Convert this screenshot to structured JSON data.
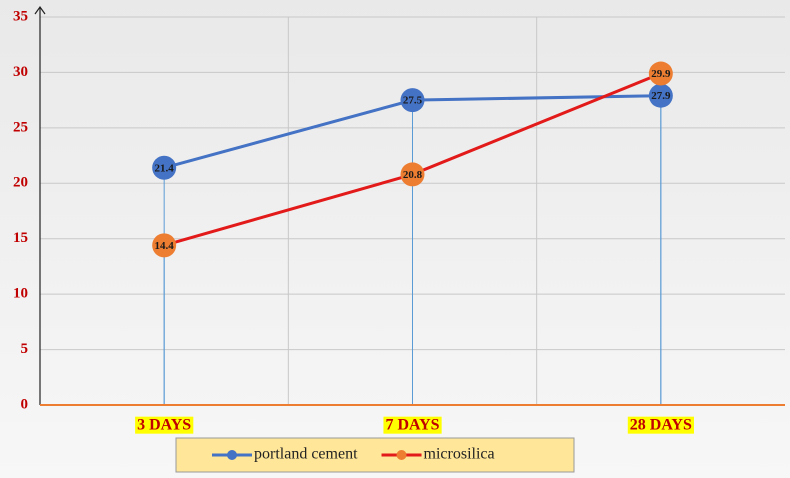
{
  "chart_data": {
    "type": "line",
    "categories": [
      "3 DAYS",
      "7 DAYS",
      "28 DAYS"
    ],
    "series": [
      {
        "name": "portland cement",
        "color": "#4472c4",
        "marker_color": "#4472c4",
        "values": [
          21.4,
          27.5,
          27.9
        ]
      },
      {
        "name": "microsilica",
        "color": "#e31a1a",
        "marker_color": "#ed7d31",
        "values": [
          14.4,
          20.8,
          29.9
        ]
      }
    ],
    "ylim": [
      0,
      35
    ],
    "yticks": [
      0,
      5,
      10,
      15,
      20,
      25,
      30,
      35
    ],
    "grid": true,
    "legend": "bottom"
  }
}
